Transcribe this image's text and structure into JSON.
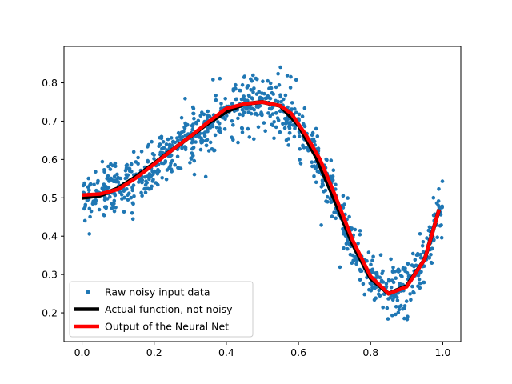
{
  "chart_data": {
    "type": "scatter",
    "xlim": [
      -0.05,
      1.05
    ],
    "ylim": [
      0.125,
      0.895
    ],
    "x_ticks": [
      0.0,
      0.2,
      0.4,
      0.6,
      0.8,
      1.0
    ],
    "x_tick_labels": [
      "0.0",
      "0.2",
      "0.4",
      "0.6",
      "0.8",
      "1.0"
    ],
    "y_ticks": [
      0.2,
      0.3,
      0.4,
      0.5,
      0.6,
      0.7,
      0.8
    ],
    "y_tick_labels": [
      "0.2",
      "0.3",
      "0.4",
      "0.5",
      "0.6",
      "0.7",
      "0.8"
    ],
    "grid": false,
    "legend": {
      "location": "lower-left",
      "entries": [
        {
          "label": "Raw noisy input data",
          "color": "#1f77b4",
          "marker": "dot"
        },
        {
          "label": "Actual function, not noisy",
          "color": "#000000",
          "marker": "line"
        },
        {
          "label": "Output of the Neural Net",
          "color": "#ff0000",
          "marker": "line"
        }
      ]
    },
    "scatter": {
      "name": "Raw noisy input data",
      "color": "#1f77b4",
      "count": 1000,
      "x_range": [
        0,
        1
      ],
      "noise_std": 0.035
    },
    "series": [
      {
        "name": "Actual function, not noisy",
        "color": "#000000",
        "x": [
          0.0,
          0.05,
          0.1,
          0.15,
          0.2,
          0.25,
          0.3,
          0.35,
          0.4,
          0.45,
          0.5,
          0.55,
          0.6,
          0.65,
          0.7,
          0.75,
          0.8,
          0.85,
          0.9,
          0.95,
          0.99
        ],
        "y": [
          0.5,
          0.506,
          0.525,
          0.555,
          0.59,
          0.625,
          0.66,
          0.695,
          0.725,
          0.745,
          0.75,
          0.74,
          0.69,
          0.605,
          0.495,
          0.38,
          0.29,
          0.25,
          0.27,
          0.34,
          0.47
        ]
      },
      {
        "name": "Output of the Neural Net",
        "color": "#ff0000",
        "x": [
          0.0,
          0.05,
          0.1,
          0.15,
          0.2,
          0.25,
          0.3,
          0.35,
          0.4,
          0.45,
          0.5,
          0.55,
          0.58,
          0.62,
          0.66,
          0.7,
          0.75,
          0.8,
          0.85,
          0.9,
          0.95,
          0.99
        ],
        "y": [
          0.507,
          0.51,
          0.522,
          0.552,
          0.588,
          0.625,
          0.66,
          0.698,
          0.733,
          0.745,
          0.75,
          0.74,
          0.72,
          0.665,
          0.6,
          0.51,
          0.39,
          0.295,
          0.25,
          0.268,
          0.34,
          0.47
        ]
      }
    ]
  }
}
